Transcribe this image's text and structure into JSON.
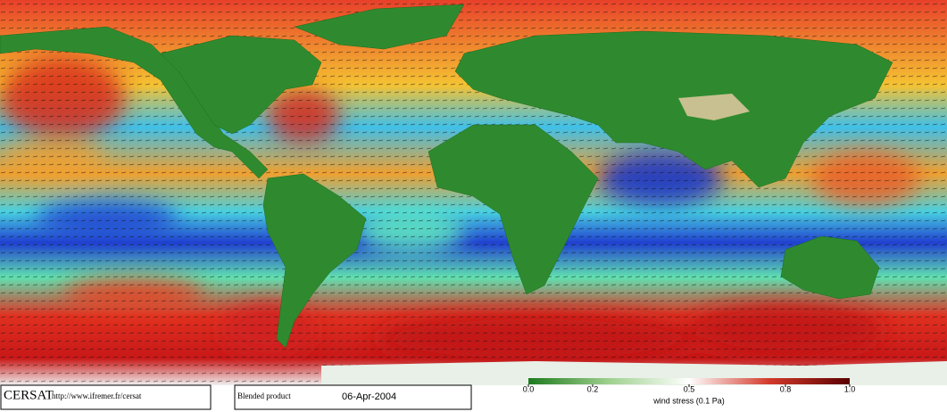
{
  "branding": {
    "logo": "CERSAT",
    "url": "http://www.ifremer.fr/cersat"
  },
  "product": {
    "label": "Blended product",
    "date": "06-Apr-2004"
  },
  "colorbar": {
    "label": "wind stress (0.1 Pa)",
    "lim": [
      0,
      1
    ],
    "ticks": [
      {
        "value": 0,
        "label": "0.0"
      },
      0.2,
      0.5,
      0.8,
      {
        "value": 1,
        "label": "1.0"
      }
    ]
  }
}
